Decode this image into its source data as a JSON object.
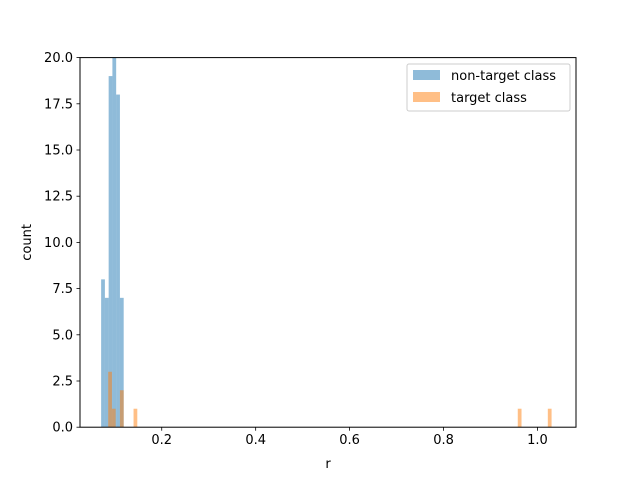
{
  "chart_data": {
    "type": "histogram",
    "xlabel": "r",
    "ylabel": "count",
    "xlim": [
      0.026,
      1.082
    ],
    "ylim": [
      0,
      20
    ],
    "x_ticks": [
      0.2,
      0.4,
      0.6,
      0.8,
      1.0
    ],
    "x_tick_labels": [
      "0.2",
      "0.4",
      "0.6",
      "0.8",
      "1.0"
    ],
    "y_ticks": [
      0,
      2.5,
      5,
      7.5,
      10,
      12.5,
      15,
      17.5,
      20
    ],
    "y_tick_labels": [
      "0.0",
      "2.5",
      "5.0",
      "7.5",
      "10.0",
      "12.5",
      "15.0",
      "17.5",
      "20.0"
    ],
    "grid": false,
    "legend_position": "upper-right",
    "series": [
      {
        "name": "non-target class",
        "color": "#1f77b4",
        "opacity": 0.5,
        "bins": [
          {
            "x0": 0.071,
            "x1": 0.079,
            "count": 8
          },
          {
            "x0": 0.079,
            "x1": 0.087,
            "count": 7
          },
          {
            "x0": 0.087,
            "x1": 0.095,
            "count": 19
          },
          {
            "x0": 0.095,
            "x1": 0.103,
            "count": 20
          },
          {
            "x0": 0.103,
            "x1": 0.111,
            "count": 18
          },
          {
            "x0": 0.111,
            "x1": 0.119,
            "count": 7
          }
        ]
      },
      {
        "name": "target class",
        "color": "#ff7f0e",
        "opacity": 0.5,
        "bins": [
          {
            "x0": 0.086,
            "x1": 0.094,
            "count": 3
          },
          {
            "x0": 0.094,
            "x1": 0.102,
            "count": 1
          },
          {
            "x0": 0.111,
            "x1": 0.119,
            "count": 2
          },
          {
            "x0": 0.14,
            "x1": 0.148,
            "count": 1
          },
          {
            "x0": 0.958,
            "x1": 0.966,
            "count": 1
          },
          {
            "x0": 1.022,
            "x1": 1.03,
            "count": 1
          }
        ]
      }
    ]
  }
}
